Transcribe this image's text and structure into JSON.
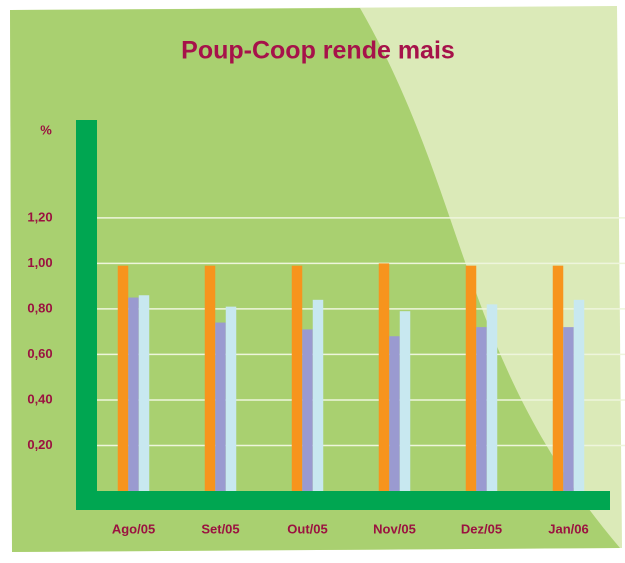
{
  "chart_data": {
    "type": "bar",
    "title": "Poup-Coop rende mais",
    "ylabel": "%",
    "categories": [
      "Ago/05",
      "Set/05",
      "Out/05",
      "Nov/05",
      "Dez/05",
      "Jan/06"
    ],
    "series": [
      {
        "color": "#f7941d",
        "values": [
          0.99,
          0.99,
          0.99,
          1.0,
          0.99,
          0.99
        ]
      },
      {
        "color": "#9a9ad0",
        "values": [
          0.85,
          0.74,
          0.71,
          0.68,
          0.72,
          0.72
        ]
      },
      {
        "color": "#c8e8f0",
        "values": [
          0.86,
          0.81,
          0.84,
          0.79,
          0.82,
          0.84
        ]
      }
    ],
    "ylim": [
      0,
      1.63
    ],
    "yticks": [
      {
        "value": 0.2,
        "label": "0,20"
      },
      {
        "value": 0.4,
        "label": "0,40"
      },
      {
        "value": 0.6,
        "label": "0,60"
      },
      {
        "value": 0.8,
        "label": "0,80"
      },
      {
        "value": 1.0,
        "label": "1,00"
      },
      {
        "value": 1.2,
        "label": "1,20"
      }
    ],
    "grid": true
  }
}
